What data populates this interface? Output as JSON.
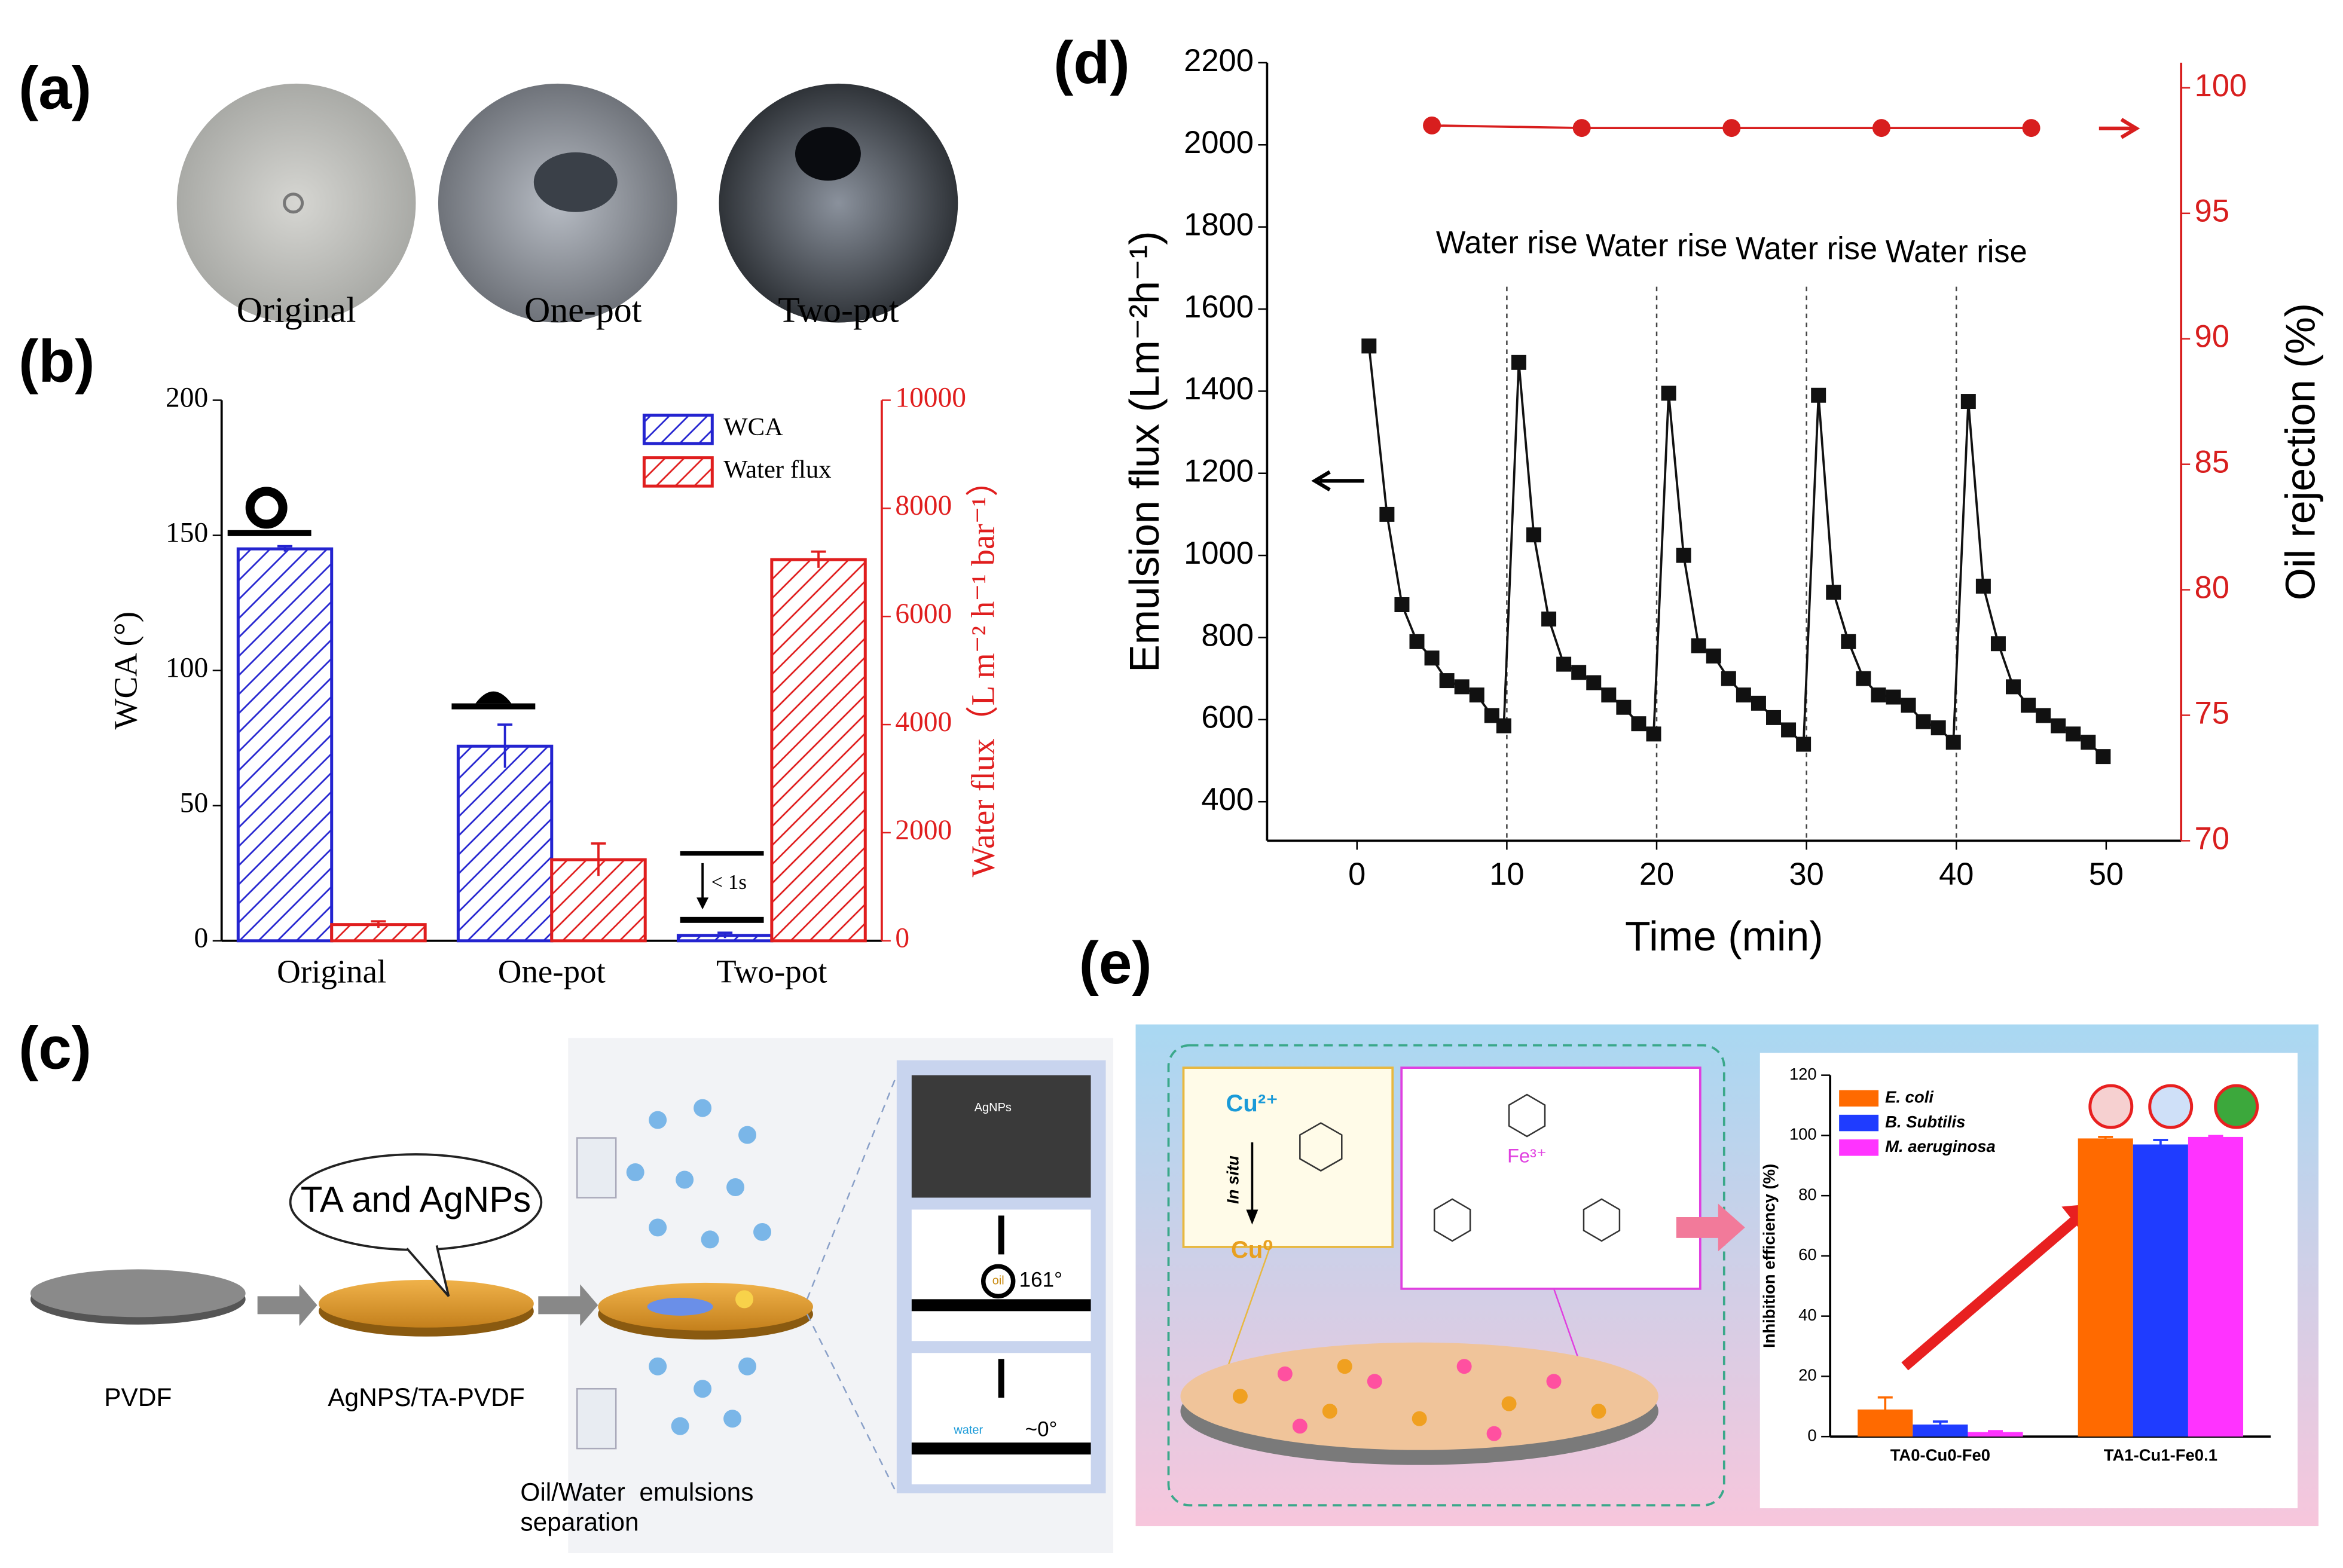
{
  "panel_labels": [
    "(a)",
    "(b)",
    "(c)",
    "(d)",
    "(e)"
  ],
  "photo_captions": [
    "Original",
    "One-pot",
    "Two-pot"
  ],
  "schematic_c": {
    "labels": [
      "PVDF",
      "AgNPS/TA-PVDF",
      "Oil/Water  emulsions separation"
    ],
    "bubble": "TA and AgNPs",
    "sem_label": "AgNPs",
    "contact_angles": [
      "161°",
      "~0°"
    ],
    "droplets": [
      "oil",
      "water"
    ]
  },
  "schematic_e": {
    "ion_top": "Cu²⁺",
    "step": "In situ",
    "ion_bottom": "Cu⁰",
    "complex": "Fe³⁺"
  },
  "chart_data": [
    {
      "type": "bar",
      "hatched": true,
      "categories": [
        "Original",
        "One-pot",
        "Two-pot"
      ],
      "series": [
        {
          "name": "WCA",
          "color": "#2424d0",
          "values": [
            145,
            72,
            2
          ],
          "errors": [
            1,
            8,
            1
          ]
        },
        {
          "name": "Water flux",
          "color": "#e01e1e",
          "axis": "y2",
          "values": [
            300,
            1500,
            7050
          ],
          "errors": [
            60,
            300,
            150
          ]
        }
      ],
      "ylabel": "WCA (°)",
      "y2label": "Water flux（L m⁻² h⁻¹ bar⁻¹）",
      "ylim": [
        0,
        200
      ],
      "yticks": [
        0,
        50,
        100,
        150,
        200
      ],
      "y2lim": [
        0,
        10000
      ],
      "y2ticks": [
        0,
        2000,
        4000,
        6000,
        8000,
        10000
      ],
      "y2_axis_color": "#e01e1e",
      "annotation": "< 1s",
      "legend": "upper right"
    },
    {
      "type": "line",
      "xlabel": "Time (min)",
      "ylabel": "Emulsion flux (Lm⁻²h⁻¹)",
      "y2label": "Oil rejection (%)",
      "xlim": [
        -6,
        55
      ],
      "xticks": [
        0,
        10,
        20,
        30,
        40,
        50
      ],
      "ylim": [
        305,
        2200
      ],
      "yticks": [
        400,
        600,
        800,
        1000,
        1200,
        1400,
        1600,
        1800,
        2000,
        2200
      ],
      "y2lim": [
        70,
        101
      ],
      "y2ticks": [
        70,
        75,
        80,
        85,
        90,
        95,
        100
      ],
      "y2_axis_color": "#d81e1e",
      "series": [
        {
          "color": "#111111",
          "marker": "square",
          "x": [
            0.8,
            2,
            3,
            4,
            5,
            6,
            7,
            8,
            9,
            9.8,
            10.8,
            11.8,
            12.8,
            13.8,
            14.8,
            15.8,
            16.8,
            17.8,
            18.8,
            19.8,
            20.8,
            21.8,
            22.8,
            23.8,
            24.8,
            25.8,
            26.8,
            27.8,
            28.8,
            29.8,
            30.8,
            31.8,
            32.8,
            33.8,
            34.8,
            35.8,
            36.8,
            37.8,
            38.8,
            39.8,
            40.8,
            41.8,
            42.8,
            43.8,
            44.8,
            45.8,
            46.8,
            47.8,
            48.8,
            49.8
          ],
          "values": [
            1510,
            1100,
            880,
            790,
            750,
            695,
            680,
            660,
            610,
            585,
            1470,
            1050,
            845,
            735,
            715,
            690,
            660,
            630,
            590,
            565,
            1395,
            1000,
            780,
            755,
            700,
            660,
            640,
            605,
            575,
            540,
            1390,
            910,
            790,
            700,
            660,
            655,
            635,
            595,
            580,
            545,
            1375,
            925,
            785,
            680,
            635,
            610,
            585,
            565,
            545,
            510
          ]
        },
        {
          "color": "#d81e1e",
          "marker": "circle",
          "axis": "y2",
          "x": [
            5,
            15,
            25,
            35,
            45
          ],
          "values": [
            98.5,
            98.4,
            98.4,
            98.4,
            98.4
          ]
        }
      ],
      "annotations": [
        {
          "text": "Water rise",
          "x": 10
        },
        {
          "text": "Water rise",
          "x": 20
        },
        {
          "text": "Water rise",
          "x": 30
        },
        {
          "text": "Water rise",
          "x": 40
        }
      ]
    },
    {
      "type": "bar",
      "hatched": false,
      "categories": [
        "TA0-Cu0-Fe0",
        "TA1-Cu1-Fe0.1"
      ],
      "series": [
        {
          "name": "E. coli",
          "color": "#ff6a00",
          "values": [
            9,
            99
          ],
          "errors": [
            4,
            0.5
          ]
        },
        {
          "name": "B. Subtilis",
          "color": "#1f3cff",
          "values": [
            4,
            97
          ],
          "errors": [
            1,
            1.5
          ]
        },
        {
          "name": "M. aeruginosa",
          "color": "#ff33ff",
          "values": [
            1.5,
            99.5
          ],
          "errors": [
            0.3,
            0.3
          ]
        }
      ],
      "ylabel": "Inhibition efficiency (%)",
      "ylim": [
        0,
        120
      ],
      "yticks": [
        0,
        20,
        40,
        60,
        80,
        100,
        120
      ],
      "legend": "upper left"
    }
  ]
}
